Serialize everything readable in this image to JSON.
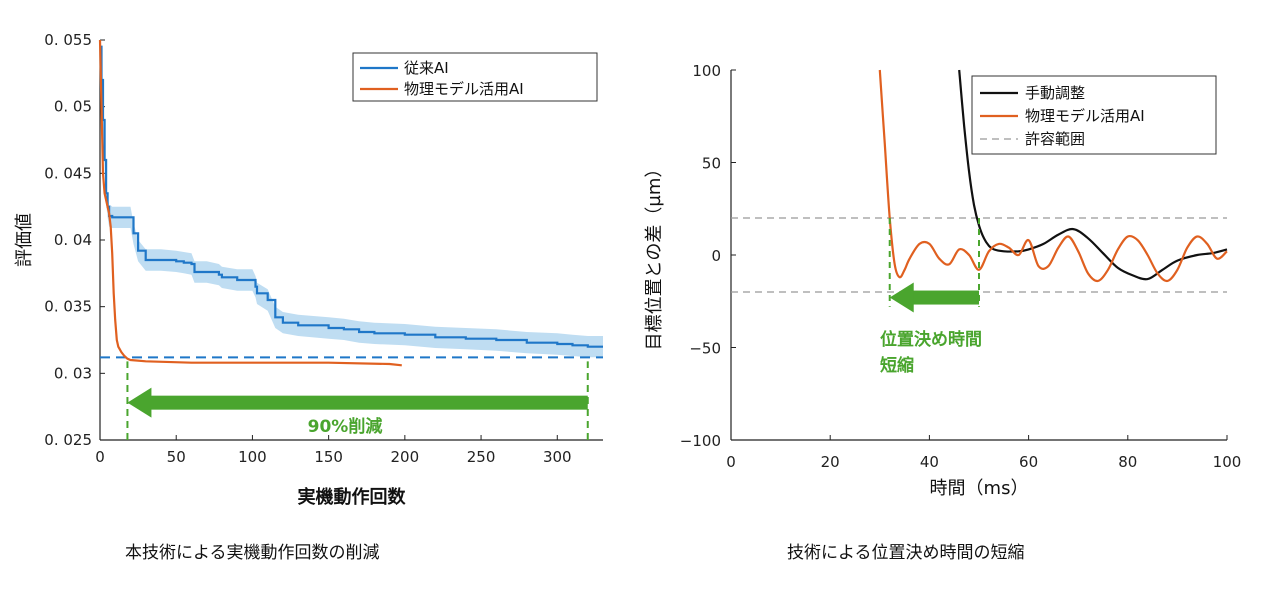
{
  "colors": {
    "blue": "#1f77c8",
    "blue_band": "#a9d2ee",
    "orange": "#e06020",
    "black": "#111111",
    "green": "#4aa52e",
    "gray": "#999999"
  },
  "chart_data": [
    {
      "type": "line",
      "ylabel": "評価値",
      "xlabel": "実機動作回数",
      "caption": "本技術による実機動作回数の削減",
      "xlim": [
        0,
        330
      ],
      "ylim": [
        0.025,
        0.055
      ],
      "xticks": [
        0,
        50,
        100,
        150,
        200,
        250,
        300
      ],
      "yticks": [
        0.025,
        0.03,
        0.035,
        0.04,
        0.045,
        0.05,
        0.055
      ],
      "ytick_labels": [
        "0. 025",
        "0. 03",
        "0. 035",
        "0. 04",
        "0. 045",
        "0. 05",
        "0. 055"
      ],
      "legend": {
        "placement": "top-right",
        "entries": [
          "従来AI",
          "物理モデル活用AI"
        ]
      },
      "series": [
        {
          "name": "従来AI",
          "color": "blue",
          "x": [
            0,
            1,
            2,
            3,
            4,
            5,
            6,
            7,
            8,
            12,
            20,
            22,
            25,
            30,
            40,
            50,
            55,
            60,
            62,
            70,
            78,
            80,
            90,
            100,
            102,
            103,
            110,
            115,
            120,
            130,
            150,
            160,
            170,
            180,
            200,
            220,
            240,
            260,
            280,
            300,
            310,
            320,
            330
          ],
          "y": [
            0.0545,
            0.052,
            0.049,
            0.046,
            0.0435,
            0.0425,
            0.0418,
            0.0418,
            0.0417,
            0.0417,
            0.0417,
            0.0405,
            0.0392,
            0.0385,
            0.0385,
            0.0384,
            0.0383,
            0.0382,
            0.0376,
            0.0376,
            0.0374,
            0.0372,
            0.037,
            0.037,
            0.0365,
            0.036,
            0.0355,
            0.0342,
            0.0338,
            0.0336,
            0.0334,
            0.0333,
            0.0331,
            0.033,
            0.0329,
            0.0327,
            0.0326,
            0.0325,
            0.0323,
            0.0322,
            0.0321,
            0.032,
            0.032
          ],
          "band": 0.0008
        },
        {
          "name": "物理モデル活用AI",
          "color": "orange",
          "x": [
            0,
            1,
            2,
            3,
            4,
            5,
            6,
            7,
            8,
            9,
            10,
            11,
            12,
            13,
            14,
            16,
            18,
            20,
            30,
            60,
            100,
            150,
            190,
            198
          ],
          "y": [
            0.055,
            0.05,
            0.045,
            0.0435,
            0.043,
            0.0425,
            0.042,
            0.041,
            0.039,
            0.036,
            0.034,
            0.0325,
            0.032,
            0.0318,
            0.0316,
            0.0313,
            0.0311,
            0.031,
            0.0309,
            0.0308,
            0.0308,
            0.0308,
            0.0307,
            0.0306
          ]
        }
      ],
      "reference_line": {
        "y": 0.0312,
        "style": "dashed",
        "color": "blue"
      },
      "markers": [
        {
          "x": 18,
          "style": "dashed",
          "color": "green"
        },
        {
          "x": 320,
          "style": "dashed",
          "color": "green"
        }
      ],
      "arrow": {
        "from_x": 320,
        "to_x": 18,
        "y": 0.0278,
        "label": "90%削減"
      }
    },
    {
      "type": "line",
      "ylabel": "目標位置との差",
      "yunit": "（µm）",
      "xlabel": "時間（ms）",
      "caption": "技術による位置決め時間の短縮",
      "xlim": [
        0,
        100
      ],
      "ylim": [
        -100,
        100
      ],
      "xticks": [
        0,
        20,
        40,
        60,
        80,
        100
      ],
      "yticks": [
        -100,
        -50,
        0,
        50,
        100
      ],
      "ytick_labels": [
        "−100",
        "−50",
        "0",
        "50",
        "100"
      ],
      "legend": {
        "placement": "top-right",
        "entries": [
          "手動調整",
          "物理モデル活用AI",
          "許容範囲"
        ]
      },
      "series": [
        {
          "name": "手動調整",
          "color": "black",
          "x": [
            46,
            47,
            48,
            49,
            50,
            51,
            52,
            53,
            55,
            58,
            60,
            63,
            66,
            69,
            72,
            75,
            78,
            81,
            84,
            87,
            90,
            94,
            97,
            100
          ],
          "y": [
            100,
            70,
            45,
            27,
            16,
            9,
            5,
            3,
            2,
            2,
            3,
            6,
            11,
            14,
            9,
            1,
            -7,
            -11,
            -13,
            -8,
            -3,
            0,
            1,
            3
          ]
        },
        {
          "name": "物理モデル活用AI",
          "color": "orange",
          "x": [
            30,
            31,
            32,
            33,
            34,
            35,
            36,
            38,
            40,
            42,
            44,
            46,
            48,
            50,
            52,
            54,
            56,
            58,
            60,
            62,
            64,
            66,
            68,
            70,
            72,
            74,
            76,
            78,
            80,
            82,
            84,
            86,
            88,
            90,
            92,
            94,
            96,
            98,
            100
          ],
          "y": [
            100,
            60,
            20,
            -5,
            -12,
            -8,
            -2,
            6,
            6,
            -2,
            -5,
            3,
            0,
            -8,
            2,
            6,
            4,
            0,
            8,
            -6,
            -6,
            4,
            10,
            2,
            -10,
            -14,
            -8,
            3,
            10,
            8,
            0,
            -10,
            -14,
            -8,
            4,
            10,
            6,
            -2,
            2
          ]
        },
        {
          "name": "許容範囲",
          "color": "gray",
          "style": "dashed",
          "y_levels": [
            20,
            -20
          ]
        }
      ],
      "markers": [
        {
          "x": 32,
          "style": "dashed",
          "color": "green"
        },
        {
          "x": 50,
          "style": "dashed",
          "color": "green"
        }
      ],
      "arrow": {
        "from_x": 50,
        "to_x": 32,
        "y": -23
      },
      "annotation": {
        "line1": "位置決め時間",
        "line2": "短縮"
      }
    }
  ]
}
